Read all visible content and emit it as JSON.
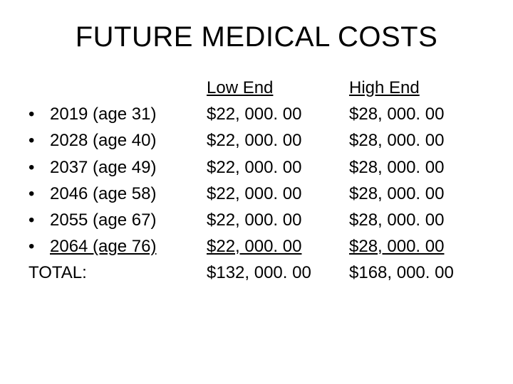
{
  "title": "FUTURE MEDICAL COSTS",
  "headers": {
    "low": "Low End",
    "high": "High End"
  },
  "rows": [
    {
      "label": "2019 (age 31)",
      "low": "$22, 000. 00",
      "high": "$28, 000. 00"
    },
    {
      "label": "2028 (age 40)",
      "low": "$22, 000. 00",
      "high": "$28, 000. 00"
    },
    {
      "label": "2037 (age 49)",
      "low": "$22, 000. 00",
      "high": "$28, 000. 00"
    },
    {
      "label": "2046 (age 58)",
      "low": "$22, 000. 00",
      "high": "$28, 000. 00"
    },
    {
      "label": "2055 (age 67)",
      "low": "$22, 000. 00",
      "high": "$28, 000. 00"
    },
    {
      "label": "2064 (age 76)",
      "low": "$22, 000. 00",
      "high": "$28, 000. 00"
    }
  ],
  "total": {
    "label": "TOTAL:",
    "low": "$132, 000. 00",
    "high": "$168, 000. 00"
  },
  "style": {
    "background_color": "#ffffff",
    "text_color": "#000000",
    "title_fontsize": 40,
    "body_fontsize": 24,
    "font_family": "Arial"
  }
}
